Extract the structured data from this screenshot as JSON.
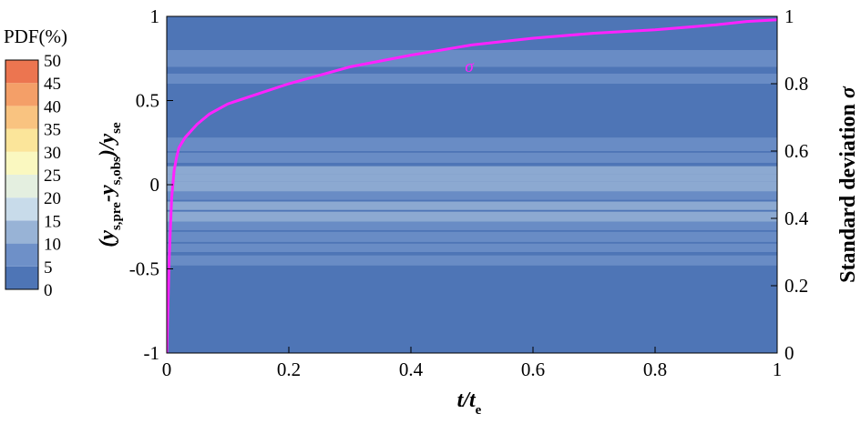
{
  "chart_data": {
    "type": "heatmap",
    "colorbar": {
      "title": "PDF(%)",
      "ticks": [
        "0",
        "5",
        "10",
        "15",
        "20",
        "25",
        "30",
        "35",
        "40",
        "45",
        "50"
      ],
      "colors": [
        "#4e75b6",
        "#6e90c8",
        "#98b3d6",
        "#c8dbea",
        "#e4efe0",
        "#faf8c0",
        "#fbe59a",
        "#f9c380",
        "#f49f68",
        "#ec7550",
        "#de4a3a"
      ]
    },
    "x_axis": {
      "title_main": "t/t",
      "title_sub": "e",
      "range": [
        0,
        1
      ],
      "ticks": [
        0,
        0.2,
        0.4,
        0.6,
        0.8,
        1
      ],
      "tick_labels": [
        "0",
        "0.2",
        "0.4",
        "0.6",
        "0.8",
        "1"
      ]
    },
    "y_axis_left": {
      "title_pre": "(y",
      "title_sub1": "s,pre",
      "title_mid": "-y",
      "title_sub2": "s,obs",
      "title_close": ")/y",
      "title_sub3": "se",
      "range": [
        -1,
        1
      ],
      "ticks": [
        -1,
        -0.5,
        0,
        0.5,
        1
      ],
      "tick_labels": [
        "-1",
        "-0.5",
        "0",
        "0.5",
        "1"
      ]
    },
    "y_axis_right": {
      "title_main": "Standard deviation ",
      "title_symbol": "σ",
      "range": [
        0,
        1
      ],
      "ticks": [
        0,
        0.2,
        0.4,
        0.6,
        0.8,
        1
      ],
      "tick_labels": [
        "0",
        "0.2",
        "0.4",
        "0.6",
        "0.8",
        "1"
      ]
    },
    "heatmap_bands": [
      {
        "y0": 0.7,
        "y1": 0.8,
        "pdf": 6
      },
      {
        "y0": 0.6,
        "y1": 0.66,
        "pdf": 5
      },
      {
        "y0": 0.2,
        "y1": 0.28,
        "pdf": 6
      },
      {
        "y0": 0.13,
        "y1": 0.19,
        "pdf": 8
      },
      {
        "y0": 0.06,
        "y1": 0.11,
        "pdf": 12
      },
      {
        "y0": 0.02,
        "y1": 0.06,
        "pdf": 14
      },
      {
        "y0": -0.04,
        "y1": 0.02,
        "pdf": 10
      },
      {
        "y0": -0.09,
        "y1": -0.04,
        "pdf": 8
      },
      {
        "y0": -0.15,
        "y1": -0.1,
        "pdf": 11
      },
      {
        "y0": -0.22,
        "y1": -0.16,
        "pdf": 13
      },
      {
        "y0": -0.27,
        "y1": -0.22,
        "pdf": 9
      },
      {
        "y0": -0.34,
        "y1": -0.28,
        "pdf": 7
      },
      {
        "y0": -0.4,
        "y1": -0.35,
        "pdf": 6
      },
      {
        "y0": -0.48,
        "y1": -0.42,
        "pdf": 5
      }
    ],
    "sigma_series": {
      "name": "σ",
      "color": "#ff22ff",
      "x": [
        0,
        0.004,
        0.008,
        0.012,
        0.016,
        0.02,
        0.03,
        0.04,
        0.05,
        0.07,
        0.1,
        0.15,
        0.2,
        0.3,
        0.4,
        0.5,
        0.6,
        0.7,
        0.8,
        0.9,
        0.95,
        1.0
      ],
      "y": [
        0.0,
        0.28,
        0.46,
        0.54,
        0.58,
        0.61,
        0.64,
        0.66,
        0.68,
        0.71,
        0.74,
        0.77,
        0.8,
        0.85,
        0.885,
        0.915,
        0.935,
        0.95,
        0.96,
        0.975,
        0.985,
        0.99
      ]
    }
  }
}
